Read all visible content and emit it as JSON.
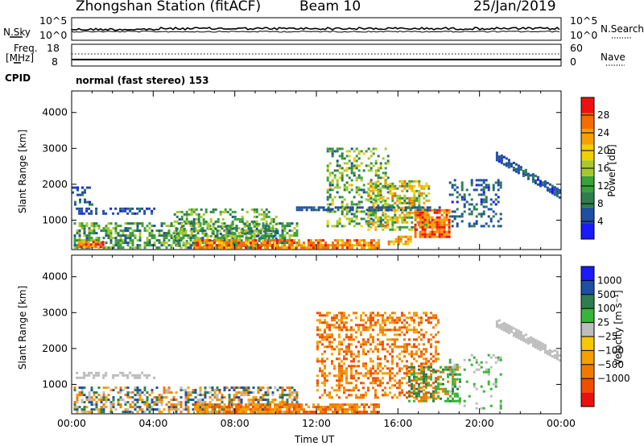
{
  "header": {
    "station": "Zhongshan Station (fitACF)",
    "beam": "Beam 10",
    "date": "25/Jan/2019"
  },
  "top_panels": {
    "nsky_label": "N.Sky",
    "nsky_ticks": [
      "10^5",
      "10^0"
    ],
    "nsearch_label": "N.Search",
    "nsearch_ticks": [
      "10^5",
      "10^0"
    ],
    "freq_label_1": "Freq.",
    "freq_label_2": "[MHz]",
    "freq_ticks": [
      "18",
      "8"
    ],
    "nave_label": "Nave",
    "nave_ticks": [
      "60",
      "0"
    ],
    "cpid_label": "CPID",
    "cpid_text": "normal (fast stereo) 153"
  },
  "colors": {
    "power": [
      "#1a1aff",
      "#1f4fa0",
      "#2e7d4f",
      "#3aa03a",
      "#a8c82e",
      "#f0d000",
      "#f7a000",
      "#f56d00",
      "#f01010"
    ],
    "velocity": [
      "#e81010",
      "#f04d00",
      "#f07a00",
      "#f5a000",
      "#f5c800",
      "#bdbdbd",
      "#38b438",
      "#2e7d4f",
      "#1f4fa0",
      "#1a1aff"
    ]
  },
  "chart_data": [
    {
      "type": "heatmap",
      "quantity": "power",
      "ylabel": "Slant Range [km]",
      "xlabel": "Time UT",
      "x_ticks": [
        "00:00",
        "04:00",
        "08:00",
        "12:00",
        "16:00",
        "20:00",
        "00:00"
      ],
      "xlim_hours": [
        0,
        24
      ],
      "y_ticks": [
        1000,
        2000,
        3000,
        4000
      ],
      "ylim": [
        180,
        4600
      ],
      "colorbar_label": "Power [dB]",
      "colorbar_ticks": [
        "4",
        "8",
        "12",
        "16",
        "20",
        "24",
        "28"
      ],
      "colorbar_range": [
        0,
        32
      ],
      "regions": [
        {
          "t0": 0.1,
          "t1": 11.0,
          "r0": 200,
          "r1": 900,
          "min": 5,
          "max": 18,
          "density": 0.55
        },
        {
          "t0": 0.3,
          "t1": 1.5,
          "r0": 220,
          "r1": 420,
          "min": 20,
          "max": 30,
          "density": 0.8
        },
        {
          "t0": 0.2,
          "t1": 4.0,
          "r0": 1150,
          "r1": 1320,
          "min": 3,
          "max": 8,
          "density": 0.5
        },
        {
          "t0": 0.0,
          "t1": 1.0,
          "r0": 1400,
          "r1": 1900,
          "min": 3,
          "max": 8,
          "density": 0.35
        },
        {
          "t0": 5.0,
          "t1": 10.0,
          "r0": 250,
          "r1": 1300,
          "min": 6,
          "max": 18,
          "density": 0.4
        },
        {
          "t0": 6.0,
          "t1": 15.0,
          "r0": 200,
          "r1": 420,
          "min": 20,
          "max": 30,
          "density": 0.8
        },
        {
          "t0": 12.5,
          "t1": 15.5,
          "r0": 800,
          "r1": 3000,
          "min": 6,
          "max": 20,
          "density": 0.35
        },
        {
          "t0": 14.5,
          "t1": 17.5,
          "r0": 700,
          "r1": 2100,
          "min": 8,
          "max": 26,
          "density": 0.5
        },
        {
          "t0": 16.8,
          "t1": 18.5,
          "r0": 500,
          "r1": 1300,
          "min": 22,
          "max": 31,
          "density": 0.8
        },
        {
          "t0": 15.5,
          "t1": 16.6,
          "r0": 300,
          "r1": 560,
          "min": 16,
          "max": 28,
          "density": 0.7
        },
        {
          "t0": 18.5,
          "t1": 21.0,
          "r0": 800,
          "r1": 2100,
          "min": 3,
          "max": 10,
          "density": 0.3
        },
        {
          "t0": 11.0,
          "t1": 18.0,
          "r0": 1250,
          "r1": 1350,
          "min": 4,
          "max": 8,
          "density": 0.6
        }
      ],
      "arc": {
        "t0": 20.8,
        "t1": 23.9,
        "r_start": 2750,
        "r_end": 1700,
        "thickness": 220,
        "min": 3,
        "max": 8,
        "density": 0.75
      }
    },
    {
      "type": "heatmap",
      "quantity": "velocity",
      "ylabel": "Slant Range [km]",
      "xlabel": "Time UT",
      "x_ticks": [
        "00:00",
        "04:00",
        "08:00",
        "12:00",
        "16:00",
        "20:00",
        "00:00"
      ],
      "xlim_hours": [
        0,
        24
      ],
      "y_ticks": [
        1000,
        2000,
        3000,
        4000
      ],
      "ylim": [
        180,
        4600
      ],
      "colorbar_label": "Velocity [m s⁻¹]",
      "colorbar_ticks": [
        "1000",
        "500",
        "100",
        "25",
        "−25",
        "−100",
        "−500",
        "−1000"
      ],
      "regions": [
        {
          "t0": 0.1,
          "t1": 11.0,
          "r0": 200,
          "r1": 900,
          "classes": [
            2,
            3,
            5,
            7,
            8
          ],
          "density": 0.55
        },
        {
          "t0": 0.2,
          "t1": 4.0,
          "r0": 1150,
          "r1": 1320,
          "classes": [
            5
          ],
          "density": 0.45
        },
        {
          "t0": 6.0,
          "t1": 15.0,
          "r0": 200,
          "r1": 420,
          "classes": [
            1,
            2,
            3
          ],
          "density": 0.75
        },
        {
          "t0": 12.0,
          "t1": 18.0,
          "r0": 600,
          "r1": 3000,
          "classes": [
            1,
            2,
            3
          ],
          "density": 0.4
        },
        {
          "t0": 16.5,
          "t1": 19.0,
          "r0": 500,
          "r1": 1500,
          "classes": [
            6,
            7,
            2
          ],
          "density": 0.5
        },
        {
          "t0": 18.5,
          "t1": 21.0,
          "r0": 300,
          "r1": 1800,
          "classes": [
            5,
            6
          ],
          "density": 0.15
        }
      ],
      "arc": {
        "t0": 20.8,
        "t1": 23.9,
        "r_start": 2700,
        "r_end": 1750,
        "thickness": 240,
        "classes": [
          5
        ],
        "density": 0.8
      }
    }
  ]
}
